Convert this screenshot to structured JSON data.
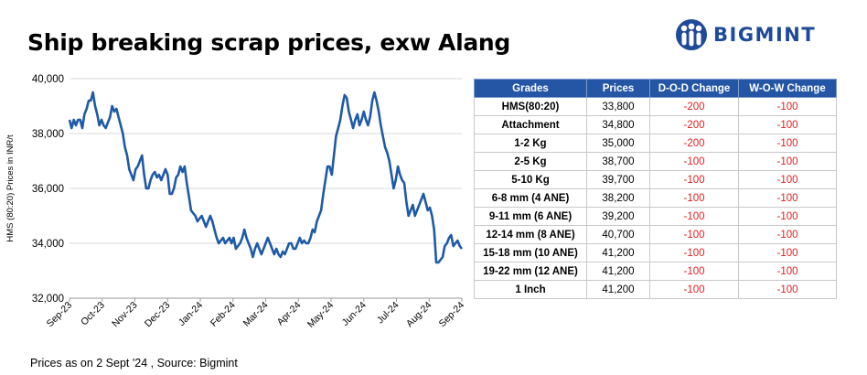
{
  "title": "Ship breaking scrap prices, exw Alang",
  "logo": {
    "text": "BIGMINT",
    "icon": "bigmint-people-icon",
    "color": "#1f4a9a"
  },
  "source_note": "Prices as on 2 Sept '24 , Source: Bigmint",
  "chart_data": {
    "type": "line",
    "title": "",
    "xlabel": "",
    "ylabel": "HMS (80:20) Prices in INR/t",
    "ylim": [
      32000,
      40000
    ],
    "yticks": [
      "32,000",
      "34,000",
      "36,000",
      "38,000",
      "40,000"
    ],
    "xticks": [
      "Sep-23",
      "Oct-23",
      "Nov-23",
      "Dec-23",
      "Jan-24",
      "Feb-24",
      "Mar-24",
      "Apr-24",
      "May-24",
      "Jun-24",
      "Jul-24",
      "Aug-24",
      "Sep-24"
    ],
    "grid": "horizontal",
    "color": "#1f5aa6",
    "series": [
      {
        "values": [
          38500,
          38200,
          38500,
          38300,
          38500,
          38500,
          38200,
          38700,
          38900,
          39200,
          39200,
          39500,
          39000,
          38700,
          38300,
          38500,
          38300,
          38200,
          38400,
          38600,
          39000,
          38800,
          38900,
          38600,
          38300,
          38000,
          37500,
          37200,
          36700,
          36500,
          36300,
          36700,
          36800,
          37000,
          37200,
          36500,
          36000,
          36000,
          36300,
          36500,
          36600,
          36400,
          36500,
          36300,
          36500,
          36700,
          36500,
          35800,
          35800,
          36000,
          36400,
          36500,
          36800,
          36600,
          36800,
          36200,
          35700,
          35200,
          35100,
          35000,
          34800,
          34900,
          35000,
          34800,
          34600,
          34800,
          35000,
          34800,
          34500,
          34200,
          34000,
          34100,
          34200,
          34000,
          34100,
          34200,
          34000,
          34200,
          33800,
          33900,
          34000,
          34200,
          34500,
          34200,
          34000,
          33800,
          33500,
          33800,
          34000,
          33800,
          33600,
          33800,
          34000,
          34200,
          34000,
          33800,
          33600,
          33800,
          33600,
          33500,
          33700,
          33600,
          33800,
          34000,
          34000,
          33800,
          33800,
          34000,
          34200,
          34000,
          34100,
          34000,
          34000,
          34200,
          34500,
          34400,
          34800,
          35000,
          35200,
          35800,
          36300,
          36800,
          36800,
          36500,
          37200,
          37900,
          38200,
          38500,
          39000,
          39400,
          39300,
          38800,
          38500,
          38200,
          38500,
          38700,
          38300,
          38500,
          38800,
          38500,
          38300,
          38600,
          39200,
          39500,
          39200,
          38800,
          38300,
          37900,
          37500,
          37300,
          37000,
          36500,
          36000,
          36300,
          36800,
          36500,
          36300,
          36200,
          35500,
          35000,
          35200,
          35400,
          35000,
          35200,
          35400,
          35600,
          35800,
          35500,
          35200,
          35300,
          35000,
          34500,
          33300,
          33300,
          33400,
          33500,
          33900,
          34000,
          34200,
          34300,
          33900,
          34000,
          34100,
          33900,
          33800
        ]
      }
    ]
  },
  "table": {
    "headers": [
      "Grades",
      "Prices",
      "D-O-D Change",
      "W-O-W Change"
    ],
    "rows": [
      {
        "grade": "HMS(80:20)",
        "price": "33,800",
        "dod": "-200",
        "wow": "-100"
      },
      {
        "grade": "Attachment",
        "price": "34,800",
        "dod": "-200",
        "wow": "-100"
      },
      {
        "grade": "1-2 Kg",
        "price": "35,000",
        "dod": "-200",
        "wow": "-100"
      },
      {
        "grade": "2-5 Kg",
        "price": "38,700",
        "dod": "-100",
        "wow": "-100"
      },
      {
        "grade": "5-10 Kg",
        "price": "39,700",
        "dod": "-100",
        "wow": "-100"
      },
      {
        "grade": "6-8 mm (4 ANE)",
        "price": "38,200",
        "dod": "-100",
        "wow": "-100"
      },
      {
        "grade": "9-11 mm (6 ANE)",
        "price": "39,200",
        "dod": "-100",
        "wow": "-100"
      },
      {
        "grade": "12-14 mm (8 ANE)",
        "price": "40,700",
        "dod": "-100",
        "wow": "-100"
      },
      {
        "grade": "15-18 mm (10 ANE)",
        "price": "41,200",
        "dod": "-100",
        "wow": "-100"
      },
      {
        "grade": "19-22 mm (12 ANE)",
        "price": "41,200",
        "dod": "-100",
        "wow": "-100"
      },
      {
        "grade": "1 Inch",
        "price": "41,200",
        "dod": "-100",
        "wow": "-100"
      }
    ]
  }
}
